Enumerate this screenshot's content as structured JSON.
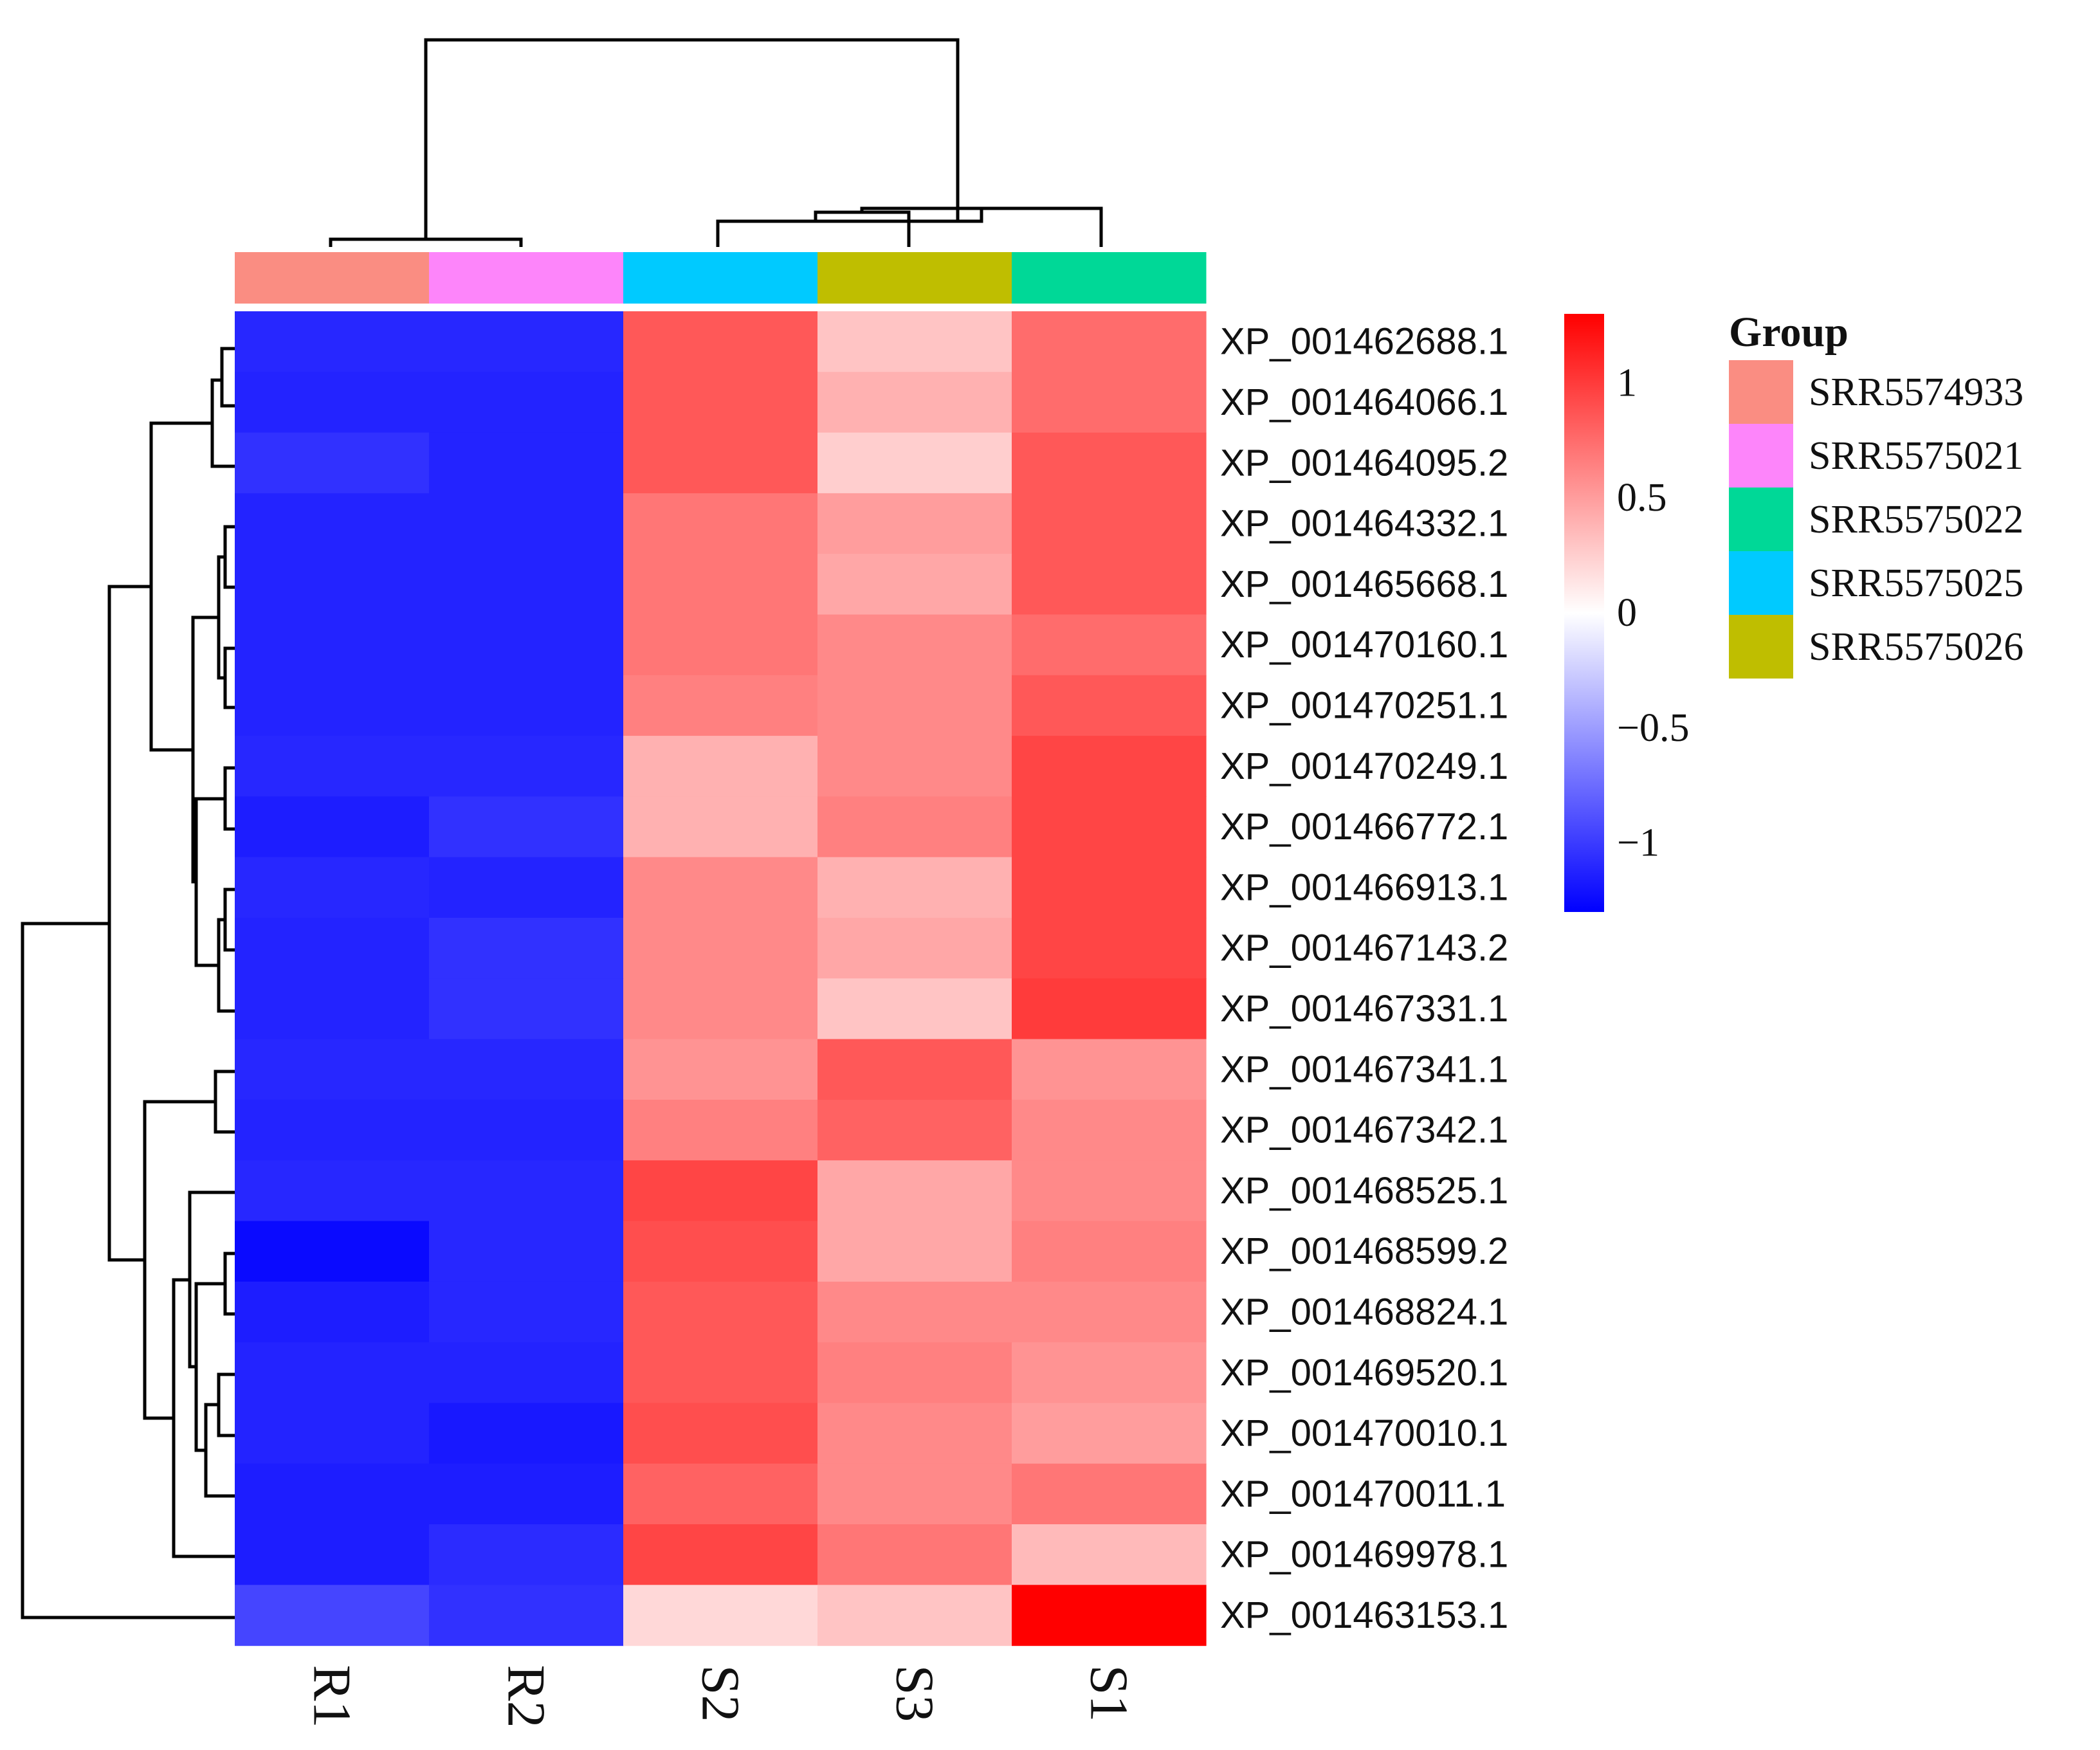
{
  "chart_data": {
    "type": "heatmap",
    "title": "",
    "columns": [
      "R1",
      "R2",
      "S2",
      "S3",
      "S1"
    ],
    "rows": [
      "XP_001462688.1",
      "XP_001464066.1",
      "XP_001464095.2",
      "XP_001464332.1",
      "XP_001465668.1",
      "XP_001470160.1",
      "XP_001470251.1",
      "XP_001470249.1",
      "XP_001466772.1",
      "XP_001466913.1",
      "XP_001467143.2",
      "XP_001467331.1",
      "XP_001467341.1",
      "XP_001467342.1",
      "XP_001468525.1",
      "XP_001468599.2",
      "XP_001468824.1",
      "XP_001469520.1",
      "XP_001470010.1",
      "XP_001470011.1",
      "XP_001469978.1",
      "XP_001463153.1"
    ],
    "values": [
      [
        -1.1,
        -1.1,
        0.85,
        0.3,
        0.75
      ],
      [
        -1.12,
        -1.12,
        0.85,
        0.4,
        0.75
      ],
      [
        -1.05,
        -1.12,
        0.85,
        0.25,
        0.85
      ],
      [
        -1.12,
        -1.12,
        0.7,
        0.5,
        0.85
      ],
      [
        -1.12,
        -1.12,
        0.7,
        0.45,
        0.85
      ],
      [
        -1.12,
        -1.12,
        0.7,
        0.6,
        0.75
      ],
      [
        -1.12,
        -1.12,
        0.65,
        0.6,
        0.85
      ],
      [
        -1.1,
        -1.1,
        0.4,
        0.6,
        0.95
      ],
      [
        -1.15,
        -1.05,
        0.4,
        0.65,
        0.95
      ],
      [
        -1.1,
        -1.12,
        0.6,
        0.4,
        0.95
      ],
      [
        -1.12,
        -1.05,
        0.6,
        0.45,
        0.95
      ],
      [
        -1.12,
        -1.05,
        0.6,
        0.3,
        1.0
      ],
      [
        -1.1,
        -1.1,
        0.55,
        0.85,
        0.55
      ],
      [
        -1.12,
        -1.12,
        0.65,
        0.8,
        0.6
      ],
      [
        -1.1,
        -1.1,
        0.95,
        0.45,
        0.6
      ],
      [
        -1.25,
        -1.1,
        0.9,
        0.45,
        0.65
      ],
      [
        -1.15,
        -1.1,
        0.85,
        0.6,
        0.6
      ],
      [
        -1.12,
        -1.12,
        0.85,
        0.65,
        0.55
      ],
      [
        -1.12,
        -1.18,
        0.9,
        0.6,
        0.5
      ],
      [
        -1.15,
        -1.15,
        0.8,
        0.6,
        0.7
      ],
      [
        -1.15,
        -1.08,
        0.95,
        0.7,
        0.35
      ],
      [
        -0.95,
        -1.05,
        0.2,
        0.3,
        1.3
      ]
    ],
    "column_groups": [
      "SRR5574933",
      "SRR5575021",
      "SRR5575025",
      "SRR5575026",
      "SRR5575022"
    ],
    "color_scale": {
      "min": -1.3,
      "mid": 0,
      "max": 1.3,
      "colors": [
        "#0000ff",
        "#ffffff",
        "#ff0000"
      ],
      "ticks": [
        -1,
        -0.5,
        0,
        0.5,
        1
      ],
      "tick_labels": [
        "−1",
        "−0.5",
        "0",
        "0.5",
        "1"
      ]
    },
    "legend": {
      "title": "Group",
      "placement": "right",
      "entries": [
        {
          "label": "SRR5574933",
          "color": "#fa8d82"
        },
        {
          "label": "SRR5575021",
          "color": "#fd85fa"
        },
        {
          "label": "SRR5575022",
          "color": "#00d897"
        },
        {
          "label": "SRR5575025",
          "color": "#00caff"
        },
        {
          "label": "SRR5575026",
          "color": "#bfbe00"
        }
      ]
    }
  }
}
